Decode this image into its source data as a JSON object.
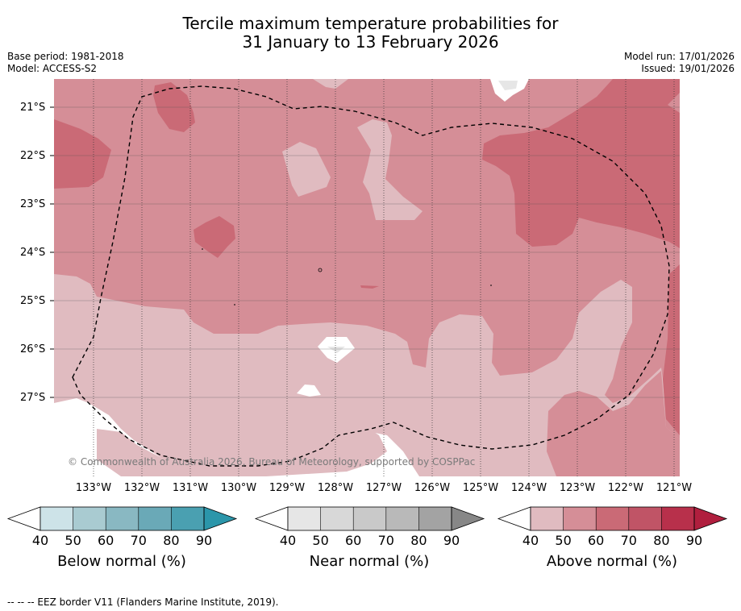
{
  "title": {
    "line1": "Tercile maximum temperature probabilities for",
    "line2": "31 January to 13 February 2026"
  },
  "meta": {
    "base_period": "Base period: 1981-2018",
    "model": "Model: ACCESS-S2",
    "model_run": "Model run: 17/01/2026",
    "issued": "Issued: 19/01/2026"
  },
  "map": {
    "latitudes": [
      "21°S",
      "22°S",
      "23°S",
      "24°S",
      "25°S",
      "26°S",
      "27°S"
    ],
    "longitudes": [
      "133°W",
      "132°W",
      "131°W",
      "130°W",
      "129°W",
      "128°W",
      "127°W",
      "126°W",
      "125°W",
      "124°W",
      "123°W",
      "122°W",
      "121°W"
    ],
    "copyright": "© Commonwealth of Australia 2026, Bureau of Meteorology, supported by COSPPac",
    "colors": {
      "above_40": "#e0bbc0",
      "above_50": "#d58e97",
      "above_60": "#ca6a76",
      "near_40": "#e6e6e6",
      "white": "#ffffff"
    }
  },
  "colorbars": [
    {
      "name": "below",
      "label": "Below normal (%)",
      "ticks": [
        "40",
        "50",
        "60",
        "70",
        "80",
        "90"
      ],
      "colors": [
        "#cde3e8",
        "#a9cbd1",
        "#89b8c2",
        "#6aa9b7",
        "#4aa0b1",
        "#2b96aa"
      ]
    },
    {
      "name": "near",
      "label": "Near normal (%)",
      "ticks": [
        "40",
        "50",
        "60",
        "70",
        "80",
        "90"
      ],
      "colors": [
        "#e6e6e6",
        "#d8d8d8",
        "#c9c9c9",
        "#b9b9b9",
        "#a3a3a3",
        "#878787"
      ]
    },
    {
      "name": "above",
      "label": "Above normal (%)",
      "ticks": [
        "40",
        "50",
        "60",
        "70",
        "80",
        "90"
      ],
      "colors": [
        "#e0bbc0",
        "#d58e97",
        "#ca6a76",
        "#c05466",
        "#b8304b",
        "#b01f3e"
      ]
    }
  ],
  "footnote": "--  --  -- EEZ border V11 (Flanders Marine Institute, 2019)."
}
